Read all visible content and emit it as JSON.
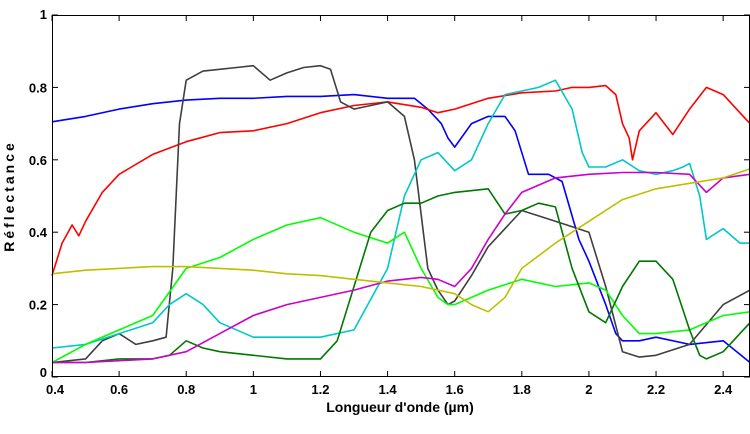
{
  "chart_data": {
    "type": "line",
    "title": "",
    "xlabel": "Longueur d'onde (µm)",
    "ylabel": "Réflectance",
    "xlim": [
      0.4,
      2.48
    ],
    "ylim": [
      0,
      1
    ],
    "xticks": [
      0.4,
      0.6,
      0.8,
      1,
      1.2,
      1.4,
      1.6,
      1.8,
      2,
      2.2,
      2.4
    ],
    "xtick_labels": [
      "0.4",
      "0.6",
      "0.8",
      "1",
      "1.2",
      "1.4",
      "1.6",
      "1.8",
      "2",
      "2.2",
      "2.4"
    ],
    "yticks": [
      0,
      0.2,
      0.4,
      0.6,
      0.8,
      1
    ],
    "ytick_labels": [
      "0",
      "0.2",
      "0.4",
      "0.6",
      "0.8",
      "1"
    ],
    "grid": false,
    "legend": false,
    "series": [
      {
        "color": "#0000ff",
        "x": [
          0.4,
          0.5,
          0.6,
          0.7,
          0.8,
          0.9,
          1.0,
          1.1,
          1.2,
          1.3,
          1.4,
          1.48,
          1.52,
          1.56,
          1.58,
          1.6,
          1.65,
          1.7,
          1.75,
          1.78,
          1.82,
          1.88,
          1.92,
          1.97,
          2.0,
          2.05,
          2.08,
          2.1,
          2.15,
          2.2,
          2.3,
          2.4,
          2.48
        ],
        "y": [
          0.705,
          0.72,
          0.74,
          0.755,
          0.765,
          0.77,
          0.77,
          0.775,
          0.775,
          0.78,
          0.77,
          0.77,
          0.74,
          0.7,
          0.66,
          0.635,
          0.7,
          0.72,
          0.72,
          0.68,
          0.56,
          0.56,
          0.54,
          0.38,
          0.32,
          0.2,
          0.12,
          0.1,
          0.1,
          0.11,
          0.09,
          0.1,
          0.04
        ]
      },
      {
        "color": "#ff0000",
        "x": [
          0.4,
          0.43,
          0.46,
          0.48,
          0.5,
          0.55,
          0.6,
          0.7,
          0.8,
          0.9,
          1.0,
          1.1,
          1.2,
          1.3,
          1.4,
          1.5,
          1.55,
          1.6,
          1.7,
          1.8,
          1.9,
          1.95,
          2.0,
          2.05,
          2.08,
          2.1,
          2.12,
          2.13,
          2.15,
          2.2,
          2.25,
          2.3,
          2.35,
          2.4,
          2.45,
          2.48
        ],
        "y": [
          0.28,
          0.37,
          0.42,
          0.39,
          0.43,
          0.51,
          0.56,
          0.615,
          0.65,
          0.675,
          0.68,
          0.7,
          0.73,
          0.75,
          0.76,
          0.745,
          0.73,
          0.74,
          0.77,
          0.785,
          0.79,
          0.8,
          0.8,
          0.805,
          0.78,
          0.7,
          0.66,
          0.6,
          0.68,
          0.73,
          0.67,
          0.74,
          0.8,
          0.78,
          0.73,
          0.7
        ]
      },
      {
        "color": "#3f3f3f",
        "x": [
          0.4,
          0.5,
          0.55,
          0.6,
          0.65,
          0.7,
          0.74,
          0.76,
          0.78,
          0.8,
          0.85,
          0.9,
          0.95,
          1.0,
          1.05,
          1.1,
          1.15,
          1.2,
          1.23,
          1.26,
          1.3,
          1.35,
          1.4,
          1.45,
          1.48,
          1.5,
          1.52,
          1.55,
          1.58,
          1.6,
          1.65,
          1.7,
          1.8,
          1.9,
          2.0,
          2.05,
          2.1,
          2.15,
          2.2,
          2.3,
          2.4,
          2.48
        ],
        "y": [
          0.04,
          0.05,
          0.1,
          0.12,
          0.09,
          0.1,
          0.11,
          0.3,
          0.7,
          0.82,
          0.845,
          0.85,
          0.855,
          0.86,
          0.82,
          0.84,
          0.855,
          0.86,
          0.85,
          0.76,
          0.74,
          0.75,
          0.76,
          0.72,
          0.6,
          0.45,
          0.3,
          0.24,
          0.2,
          0.21,
          0.28,
          0.36,
          0.46,
          0.43,
          0.4,
          0.25,
          0.07,
          0.055,
          0.06,
          0.09,
          0.2,
          0.24
        ]
      },
      {
        "color": "#00c8c8",
        "x": [
          0.4,
          0.5,
          0.6,
          0.7,
          0.75,
          0.8,
          0.85,
          0.9,
          1.0,
          1.1,
          1.2,
          1.3,
          1.4,
          1.45,
          1.5,
          1.55,
          1.6,
          1.65,
          1.7,
          1.75,
          1.8,
          1.85,
          1.9,
          1.95,
          1.98,
          2.0,
          2.05,
          2.1,
          2.15,
          2.2,
          2.25,
          2.28,
          2.3,
          2.33,
          2.35,
          2.4,
          2.45,
          2.48
        ],
        "y": [
          0.08,
          0.09,
          0.12,
          0.15,
          0.2,
          0.23,
          0.2,
          0.15,
          0.11,
          0.11,
          0.11,
          0.13,
          0.3,
          0.5,
          0.6,
          0.62,
          0.57,
          0.6,
          0.7,
          0.78,
          0.79,
          0.8,
          0.82,
          0.74,
          0.62,
          0.58,
          0.58,
          0.6,
          0.57,
          0.56,
          0.57,
          0.58,
          0.59,
          0.5,
          0.38,
          0.41,
          0.37,
          0.37
        ]
      },
      {
        "color": "#00ff00",
        "x": [
          0.4,
          0.5,
          0.6,
          0.7,
          0.8,
          0.9,
          1.0,
          1.1,
          1.2,
          1.3,
          1.4,
          1.45,
          1.5,
          1.55,
          1.58,
          1.6,
          1.65,
          1.7,
          1.8,
          1.9,
          2.0,
          2.05,
          2.1,
          2.15,
          2.2,
          2.3,
          2.4,
          2.48
        ],
        "y": [
          0.04,
          0.09,
          0.13,
          0.17,
          0.3,
          0.33,
          0.38,
          0.42,
          0.44,
          0.4,
          0.37,
          0.4,
          0.3,
          0.22,
          0.2,
          0.2,
          0.22,
          0.24,
          0.27,
          0.25,
          0.26,
          0.24,
          0.17,
          0.12,
          0.12,
          0.13,
          0.17,
          0.18
        ]
      },
      {
        "color": "#007800",
        "x": [
          0.4,
          0.5,
          0.6,
          0.7,
          0.75,
          0.8,
          0.85,
          0.9,
          1.0,
          1.1,
          1.2,
          1.25,
          1.3,
          1.35,
          1.4,
          1.45,
          1.5,
          1.55,
          1.6,
          1.7,
          1.75,
          1.8,
          1.85,
          1.9,
          1.95,
          2.0,
          2.05,
          2.1,
          2.15,
          2.2,
          2.25,
          2.3,
          2.33,
          2.35,
          2.4,
          2.48
        ],
        "y": [
          0.04,
          0.04,
          0.05,
          0.05,
          0.06,
          0.1,
          0.08,
          0.07,
          0.06,
          0.05,
          0.05,
          0.1,
          0.25,
          0.4,
          0.46,
          0.48,
          0.48,
          0.5,
          0.51,
          0.52,
          0.45,
          0.46,
          0.48,
          0.47,
          0.3,
          0.18,
          0.15,
          0.25,
          0.32,
          0.32,
          0.27,
          0.13,
          0.06,
          0.05,
          0.07,
          0.15
        ]
      },
      {
        "color": "#cc00cc",
        "x": [
          0.4,
          0.5,
          0.6,
          0.7,
          0.8,
          0.9,
          1.0,
          1.1,
          1.2,
          1.3,
          1.4,
          1.5,
          1.55,
          1.6,
          1.65,
          1.7,
          1.75,
          1.8,
          1.9,
          2.0,
          2.1,
          2.2,
          2.3,
          2.35,
          2.4,
          2.48
        ],
        "y": [
          0.04,
          0.04,
          0.045,
          0.05,
          0.07,
          0.12,
          0.17,
          0.2,
          0.22,
          0.24,
          0.265,
          0.275,
          0.27,
          0.25,
          0.3,
          0.38,
          0.45,
          0.51,
          0.55,
          0.56,
          0.565,
          0.565,
          0.56,
          0.51,
          0.55,
          0.56
        ]
      },
      {
        "color": "#bfbf00",
        "x": [
          0.4,
          0.5,
          0.6,
          0.7,
          0.8,
          0.9,
          1.0,
          1.1,
          1.2,
          1.3,
          1.4,
          1.5,
          1.6,
          1.65,
          1.7,
          1.75,
          1.8,
          1.9,
          2.0,
          2.1,
          2.2,
          2.3,
          2.4,
          2.48
        ],
        "y": [
          0.285,
          0.295,
          0.3,
          0.305,
          0.305,
          0.3,
          0.295,
          0.285,
          0.28,
          0.27,
          0.26,
          0.25,
          0.23,
          0.2,
          0.18,
          0.22,
          0.3,
          0.37,
          0.43,
          0.49,
          0.52,
          0.535,
          0.55,
          0.575
        ]
      }
    ]
  }
}
